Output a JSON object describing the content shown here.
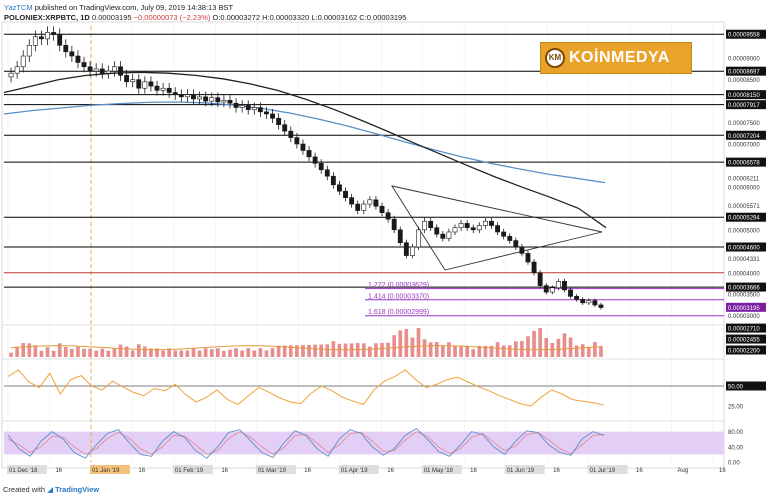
{
  "header": {
    "line1_brand": "YazTCM",
    "line1_rest": "published on TradingView.com, July 09, 2019 14:38:13 BST",
    "symbol": "POLONIEX:XRPBTC, 1D",
    "last": "0.00003195",
    "change": "−0.00000073 (−2.23%)",
    "ohlc": "O:0.00003272 H:0.00003320 L:0.00003162 C:0.00003195"
  },
  "logo": {
    "badge": "KM",
    "text": "KOİNMEDYA"
  },
  "footer": {
    "prefix": "Created with",
    "brand": "TradingView"
  },
  "colors": {
    "candle": "#1a1a1a",
    "ma_black": "#222222",
    "ma_blue": "#5b8fc7",
    "level": "#000000",
    "level_red": "#c0392b",
    "fib": "#9b35c4",
    "vol": "#e88c8c",
    "vol_ma": "#e39a3a",
    "rsi": "#f0a238",
    "stoch_k": "#5b8fc7",
    "stoch_d": "#e48aa0",
    "stoch_band": "#e3cff5",
    "event_line": "#f0a238",
    "price_tag": "#7a1fa3"
  },
  "chart_data": {
    "type": "candlestick",
    "x": [
      "01 Dec '18",
      "16",
      "01 Jan '19",
      "16",
      "01 Feb '19",
      "16",
      "01 Mar '19",
      "16",
      "01 Apr '19",
      "16",
      "01 May '19",
      "16",
      "01 Jun '19",
      "16",
      "01 Jul '19",
      "16",
      "Aug",
      "16"
    ],
    "highlighted_x": [
      "01 Dec '18",
      "01 Jan '19",
      "01 Feb '19",
      "01 Mar '19",
      "01 Apr '19",
      "01 May '19",
      "01 Jun '19",
      "01 Jul '19"
    ],
    "y_ticks": [
      "0.00009558",
      "0.00009000",
      "0.00008697",
      "0.00008500",
      "0.00008150",
      "0.00007917",
      "0.00007500",
      "0.00007204",
      "0.00007000",
      "0.00006578",
      "0.00006211",
      "0.00006000",
      "0.00005571",
      "0.00005294",
      "0.00005000",
      "0.00004600",
      "0.00004331",
      "0.00004000",
      "0.00003666",
      "0.00003500",
      "0.00003195",
      "0.00003000",
      "0.00002710",
      "0.00002455",
      "0.00002200"
    ],
    "highlighted_ticks": [
      "0.00009558",
      "0.00008697",
      "0.00008150",
      "0.00007917",
      "0.00007204",
      "0.00006578",
      "0.00005294",
      "0.00004600",
      "0.00003666",
      "0.00003195",
      "0.00002710",
      "0.00002455",
      "0.00002200"
    ],
    "last_price": 3.195e-05,
    "levels": [
      9.558e-05,
      8.697e-05,
      8.15e-05,
      7.917e-05,
      7.204e-05,
      6.578e-05,
      5.294e-05,
      4.6e-05,
      3.666e-05
    ],
    "red_level": 4e-05,
    "fib_levels": [
      {
        "label": "1.272 (0.00003629)",
        "value": 3.629e-05
      },
      {
        "label": "1.414 (0.00003370)",
        "value": 3.37e-05
      },
      {
        "label": "1.618 (0.00002999)",
        "value": 2.999e-05
      }
    ],
    "candles_close": [
      8.65e-05,
      8.8e-05,
      9.05e-05,
      9.3e-05,
      9.5e-05,
      9.45e-05,
      9.6e-05,
      9.55e-05,
      9.3e-05,
      9.15e-05,
      9.05e-05,
      8.9e-05,
      8.8e-05,
      8.7e-05,
      8.75e-05,
      8.65e-05,
      8.7e-05,
      8.8e-05,
      8.6e-05,
      8.45e-05,
      8.5e-05,
      8.3e-05,
      8.45e-05,
      8.35e-05,
      8.25e-05,
      8.3e-05,
      8.2e-05,
      8.15e-05,
      8.1e-05,
      8.15e-05,
      8.05e-05,
      8.1e-05,
      8e-05,
      8.08e-05,
      7.98e-05,
      8.02e-05,
      7.95e-05,
      7.85e-05,
      7.9e-05,
      7.8e-05,
      7.85e-05,
      7.75e-05,
      7.7e-05,
      7.6e-05,
      7.45e-05,
      7.3e-05,
      7.15e-05,
      7e-05,
      6.85e-05,
      6.7e-05,
      6.55e-05,
      6.4e-05,
      6.25e-05,
      6.05e-05,
      5.9e-05,
      5.75e-05,
      5.6e-05,
      5.45e-05,
      5.6e-05,
      5.7e-05,
      5.55e-05,
      5.4e-05,
      5.25e-05,
      5e-05,
      4.7e-05,
      4.4e-05,
      4.6e-05,
      5e-05,
      5.2e-05,
      5.05e-05,
      4.9e-05,
      4.8e-05,
      4.95e-05,
      5.05e-05,
      5.15e-05,
      5.05e-05,
      5e-05,
      5.1e-05,
      5.2e-05,
      5.1e-05,
      4.95e-05,
      4.85e-05,
      4.75e-05,
      4.6e-05,
      4.45e-05,
      4.25e-05,
      4e-05,
      3.7e-05,
      3.55e-05,
      3.65e-05,
      3.8e-05,
      3.6e-05,
      3.45e-05,
      3.38e-05,
      3.3e-05,
      3.35e-05,
      3.25e-05,
      3.19e-05
    ],
    "ma_black": [
      8.2e-05,
      8.35e-05,
      8.5e-05,
      8.6e-05,
      8.65e-05,
      8.67e-05,
      8.65e-05,
      8.6e-05,
      8.52e-05,
      8.4e-05,
      8.25e-05,
      8.05e-05,
      7.82e-05,
      7.57e-05,
      7.3e-05,
      7.02e-05,
      6.75e-05,
      6.48e-05,
      6.22e-05,
      5.98e-05,
      5.75e-05,
      5.5e-05,
      5.05e-05
    ],
    "ma_blue": [
      7.7e-05,
      7.78e-05,
      7.84e-05,
      7.9e-05,
      7.94e-05,
      7.97e-05,
      7.98e-05,
      7.96e-05,
      7.91e-05,
      7.83e-05,
      7.72e-05,
      7.58e-05,
      7.42e-05,
      7.24e-05,
      7.05e-05,
      6.87e-05,
      6.7e-05,
      6.55e-05,
      6.42e-05,
      6.3e-05,
      6.2e-05,
      6.1e-05
    ],
    "rsi_ticks": [
      "50.00",
      "25.00"
    ],
    "rsi_values": [
      62,
      70,
      55,
      48,
      66,
      40,
      58,
      63,
      50,
      45,
      56,
      49,
      42,
      38,
      47,
      44,
      52,
      39,
      30,
      36,
      45,
      33,
      27,
      38,
      48,
      42,
      35,
      30,
      28,
      41,
      50,
      44,
      36,
      31,
      27,
      45,
      56,
      62,
      70,
      58,
      48,
      52,
      58,
      61,
      55,
      49,
      44,
      38,
      33,
      28,
      25,
      36,
      45,
      40,
      33,
      31,
      29,
      26
    ],
    "stoch_ticks": [
      "80.00",
      "40.00",
      "0.00"
    ],
    "stoch_k": [
      70,
      35,
      15,
      55,
      80,
      60,
      25,
      10,
      45,
      75,
      85,
      50,
      20,
      15,
      55,
      80,
      65,
      30,
      10,
      40,
      78,
      85,
      55,
      25,
      12,
      50,
      82,
      70,
      35,
      15,
      60,
      85,
      75,
      40,
      18,
      35,
      70,
      88,
      60,
      28,
      15,
      45,
      80,
      72,
      40,
      20,
      55,
      82,
      78,
      45,
      25,
      18,
      60,
      80,
      70
    ],
    "stoch_d": [
      60,
      45,
      25,
      40,
      68,
      65,
      40,
      20,
      35,
      62,
      78,
      62,
      35,
      20,
      40,
      70,
      68,
      45,
      20,
      30,
      62,
      80,
      65,
      40,
      20,
      38,
      70,
      72,
      50,
      25,
      45,
      75,
      78,
      55,
      28,
      30,
      58,
      80,
      68,
      40,
      22,
      35,
      65,
      75,
      52,
      30,
      42,
      72,
      78,
      58,
      35,
      22,
      45,
      70,
      72
    ]
  }
}
